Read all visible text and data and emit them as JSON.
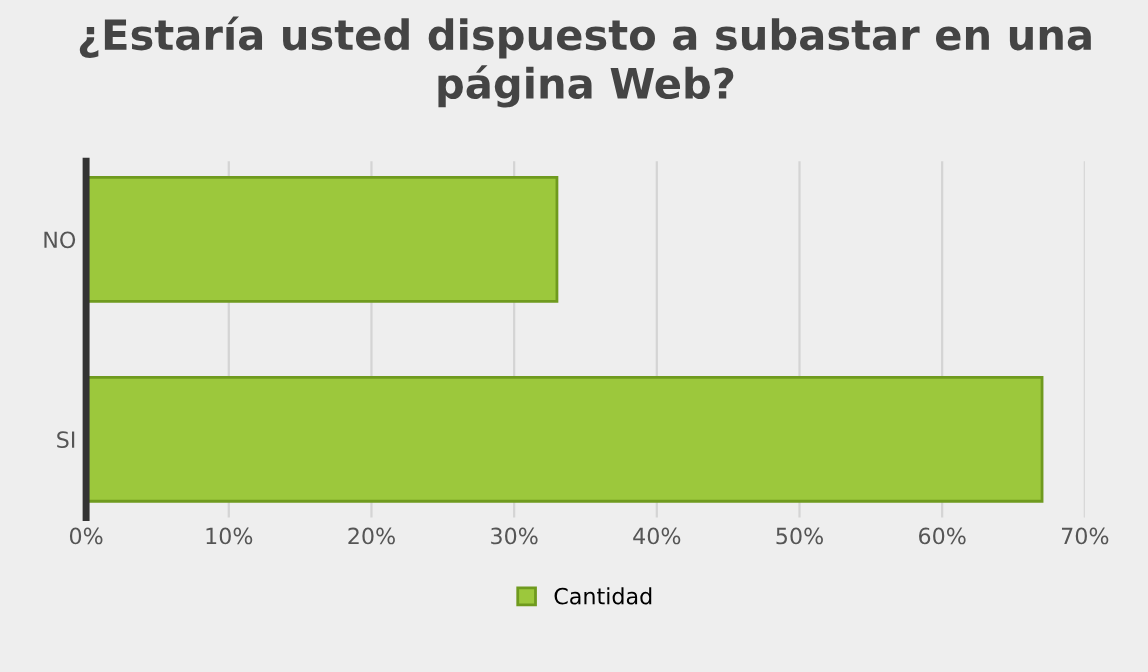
{
  "chart_data": {
    "type": "bar",
    "orientation": "horizontal",
    "title": "¿Estaría usted dispuesto a subastar en una página Web?",
    "categories": [
      "NO",
      "SI"
    ],
    "series": [
      {
        "name": "Cantidad",
        "color": "#9cc83c",
        "values": [
          33,
          67
        ]
      }
    ],
    "xlim": [
      0,
      70
    ],
    "xticks": [
      {
        "value": 0,
        "label": "0%"
      },
      {
        "value": 10,
        "label": "10%"
      },
      {
        "value": 20,
        "label": "20%"
      },
      {
        "value": 30,
        "label": "30%"
      },
      {
        "value": 40,
        "label": "40%"
      },
      {
        "value": 50,
        "label": "50%"
      },
      {
        "value": 60,
        "label": "60%"
      },
      {
        "value": 70,
        "label": "70%"
      }
    ],
    "grid": "x",
    "legend": "bottom"
  }
}
